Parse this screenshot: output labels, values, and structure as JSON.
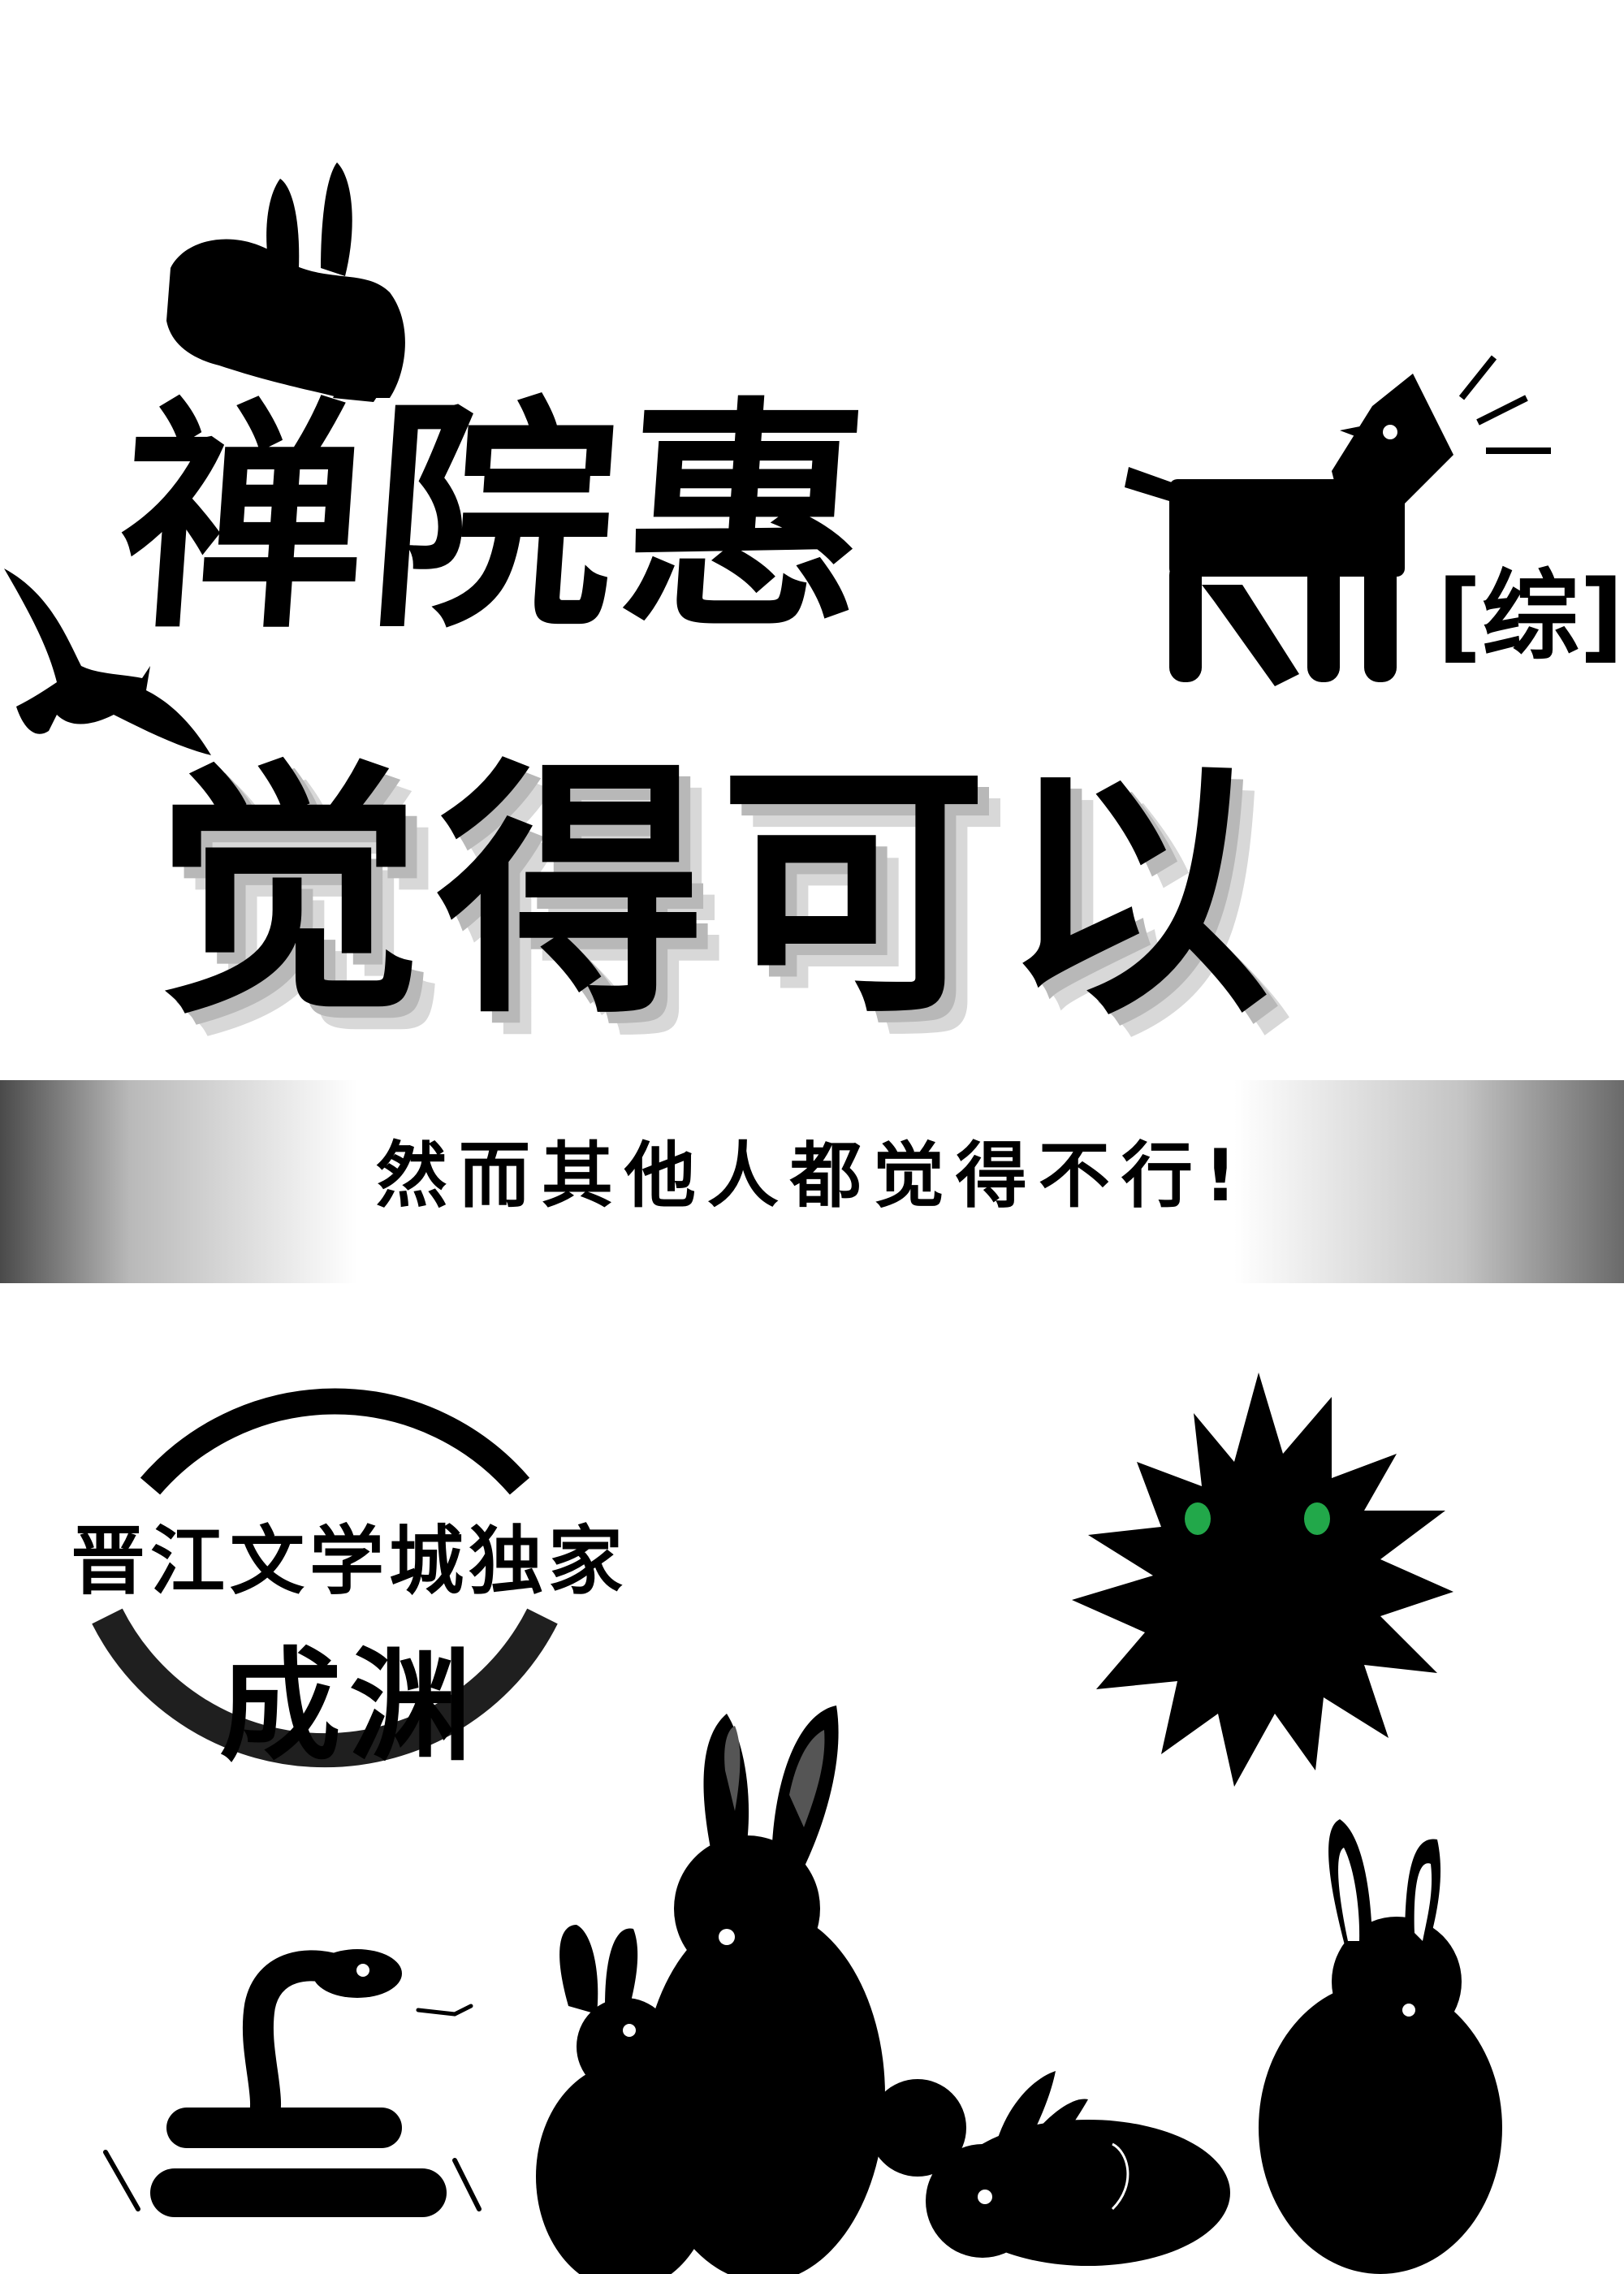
{
  "cover": {
    "title_line1": "禅院惠",
    "title_line2": "觉得可以",
    "genre_tag": "[综]",
    "tagline": "然而其他人都觉得不行!",
    "publisher": "晋江文学城独家",
    "author": "成渊"
  },
  "colors": {
    "ink": "#000000",
    "background": "#ffffff",
    "shadow": "#b8b8b8",
    "eye_green": "#22a84a",
    "ring_gray": "#1f1f1f"
  },
  "icons": [
    "rabbit-icon",
    "eagle-icon",
    "dog-icon",
    "sun-spiky-icon",
    "snake-icon"
  ]
}
